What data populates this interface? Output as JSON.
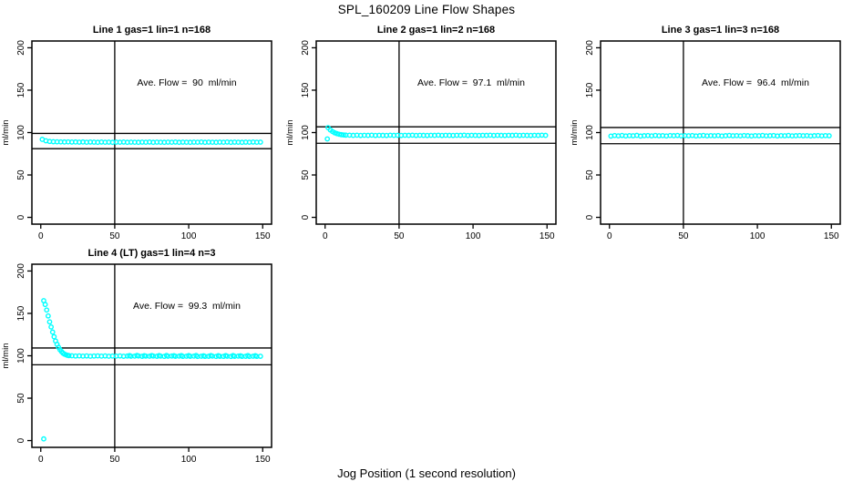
{
  "figure": {
    "title": "SPL_160209  Line Flow Shapes",
    "xlabel": "Jog Position (1 second resolution)",
    "background": "#FFFFFF",
    "series_color": "#00FFFF",
    "axis_color": "#000000"
  },
  "chart_data": [
    {
      "type": "scatter",
      "title": "Line 1 gas=1 lin=1 n=168",
      "annotation": "Ave. Flow =  90  ml/min",
      "ave_flow": 90,
      "ylabel": "ml/min",
      "xlim": [
        -6,
        156
      ],
      "ylim": [
        -8,
        208
      ],
      "xticks": [
        0,
        50,
        100,
        150
      ],
      "yticks": [
        0,
        50,
        100,
        150,
        200
      ],
      "vline": 50,
      "hlines": [
        99,
        81
      ],
      "points": [
        [
          1,
          92.0
        ],
        [
          3.5,
          90.3
        ],
        [
          6,
          89.5
        ],
        [
          8.5,
          89.2
        ],
        [
          11,
          89.1
        ],
        [
          13.5,
          89.0
        ],
        [
          16,
          88.9
        ],
        [
          18.5,
          89.0
        ],
        [
          21,
          88.8
        ],
        [
          23.5,
          88.9
        ],
        [
          26,
          88.7
        ],
        [
          28.5,
          88.9
        ],
        [
          31,
          88.6
        ],
        [
          33.5,
          88.8
        ],
        [
          36,
          88.7
        ],
        [
          38.5,
          88.5
        ],
        [
          41,
          88.8
        ],
        [
          43.5,
          88.6
        ],
        [
          46,
          88.7
        ],
        [
          48.5,
          88.5
        ],
        [
          51,
          88.7
        ],
        [
          53.5,
          88.6
        ],
        [
          56,
          88.8
        ],
        [
          58.5,
          88.5
        ],
        [
          61,
          88.7
        ],
        [
          63.5,
          88.6
        ],
        [
          66,
          88.5
        ],
        [
          68.5,
          88.7
        ],
        [
          71,
          88.6
        ],
        [
          73.5,
          88.8
        ],
        [
          76,
          88.5
        ],
        [
          78.5,
          88.7
        ],
        [
          81,
          88.6
        ],
        [
          83.5,
          88.5
        ],
        [
          86,
          88.7
        ],
        [
          88.5,
          88.6
        ],
        [
          91,
          88.8
        ],
        [
          93.5,
          88.5
        ],
        [
          96,
          88.7
        ],
        [
          98.5,
          88.6
        ],
        [
          101,
          88.5
        ],
        [
          103.5,
          88.7
        ],
        [
          106,
          88.6
        ],
        [
          108.5,
          88.8
        ],
        [
          111,
          88.5
        ],
        [
          113.5,
          88.7
        ],
        [
          116,
          88.6
        ],
        [
          118.5,
          88.5
        ],
        [
          121,
          88.7
        ],
        [
          123.5,
          88.6
        ],
        [
          126,
          88.8
        ],
        [
          128.5,
          88.5
        ],
        [
          131,
          88.7
        ],
        [
          133.5,
          88.6
        ],
        [
          136,
          88.5
        ],
        [
          138.5,
          88.7
        ],
        [
          141,
          88.6
        ],
        [
          143.5,
          88.8
        ],
        [
          146,
          88.6
        ],
        [
          148.5,
          88.7
        ]
      ]
    },
    {
      "type": "scatter",
      "title": "Line 2 gas=1 lin=2 n=168",
      "annotation": "Ave. Flow =  97.1  ml/min",
      "ave_flow": 97.1,
      "ylabel": "ml/min",
      "xlim": [
        -6,
        156
      ],
      "ylim": [
        -8,
        208
      ],
      "xticks": [
        0,
        50,
        100,
        150
      ],
      "yticks": [
        0,
        50,
        100,
        150,
        200
      ],
      "vline": 50,
      "hlines": [
        106.8,
        87.4
      ],
      "points": [
        [
          1.5,
          92.5
        ],
        [
          2,
          105.8
        ],
        [
          3.5,
          103.2
        ],
        [
          5,
          101.2
        ],
        [
          6.5,
          99.7
        ],
        [
          8,
          98.7
        ],
        [
          9.5,
          98.0
        ],
        [
          11,
          97.5
        ],
        [
          12.5,
          97.2
        ],
        [
          14,
          97.0
        ],
        [
          16.5,
          96.9
        ],
        [
          19,
          96.7
        ],
        [
          21.5,
          96.9
        ],
        [
          24,
          96.6
        ],
        [
          26.5,
          96.8
        ],
        [
          29,
          96.7
        ],
        [
          31.5,
          96.9
        ],
        [
          34,
          96.6
        ],
        [
          36.5,
          96.8
        ],
        [
          39,
          96.7
        ],
        [
          41.5,
          96.6
        ],
        [
          44,
          96.9
        ],
        [
          46.5,
          96.7
        ],
        [
          49,
          96.8
        ],
        [
          51.5,
          96.6
        ],
        [
          54,
          96.8
        ],
        [
          56.5,
          96.7
        ],
        [
          59,
          96.9
        ],
        [
          61.5,
          96.6
        ],
        [
          64,
          96.8
        ],
        [
          66.5,
          96.7
        ],
        [
          69,
          96.6
        ],
        [
          71.5,
          96.8
        ],
        [
          74,
          96.7
        ],
        [
          76.5,
          96.9
        ],
        [
          79,
          96.6
        ],
        [
          81.5,
          96.8
        ],
        [
          84,
          96.7
        ],
        [
          86.5,
          96.6
        ],
        [
          89,
          96.8
        ],
        [
          91.5,
          96.7
        ],
        [
          94,
          96.9
        ],
        [
          96.5,
          96.6
        ],
        [
          99,
          96.8
        ],
        [
          101.5,
          96.7
        ],
        [
          104,
          96.6
        ],
        [
          106.5,
          96.8
        ],
        [
          109,
          96.7
        ],
        [
          111.5,
          96.9
        ],
        [
          114,
          96.6
        ],
        [
          116.5,
          96.8
        ],
        [
          119,
          96.7
        ],
        [
          121.5,
          96.6
        ],
        [
          124,
          96.8
        ],
        [
          126.5,
          96.7
        ],
        [
          129,
          96.9
        ],
        [
          131.5,
          96.6
        ],
        [
          134,
          96.8
        ],
        [
          136.5,
          96.7
        ],
        [
          139,
          96.6
        ],
        [
          141.5,
          96.8
        ],
        [
          144,
          96.7
        ],
        [
          146.5,
          96.9
        ],
        [
          149,
          96.7
        ]
      ]
    },
    {
      "type": "scatter",
      "title": "Line 3 gas=1 lin=3 n=168",
      "annotation": "Ave. Flow =  96.4  ml/min",
      "ave_flow": 96.4,
      "ylabel": "ml/min",
      "xlim": [
        -6,
        156
      ],
      "ylim": [
        -8,
        208
      ],
      "xticks": [
        0,
        50,
        100,
        150
      ],
      "yticks": [
        0,
        50,
        100,
        150,
        200
      ],
      "vline": 50,
      "hlines": [
        106.0,
        86.8
      ],
      "points": [
        [
          1,
          95.8
        ],
        [
          3.5,
          96.5
        ],
        [
          6,
          96.1
        ],
        [
          8.5,
          96.6
        ],
        [
          11,
          96.0
        ],
        [
          13.5,
          96.4
        ],
        [
          16,
          96.2
        ],
        [
          18.5,
          96.7
        ],
        [
          21,
          95.9
        ],
        [
          23.5,
          96.3
        ],
        [
          26,
          96.5
        ],
        [
          28.5,
          96.1
        ],
        [
          31,
          96.6
        ],
        [
          33.5,
          96.2
        ],
        [
          36,
          96.4
        ],
        [
          38.5,
          96.0
        ],
        [
          41,
          96.5
        ],
        [
          43.5,
          96.3
        ],
        [
          46,
          96.6
        ],
        [
          48.5,
          96.1
        ],
        [
          51,
          96.4
        ],
        [
          53.5,
          96.2
        ],
        [
          56,
          96.5
        ],
        [
          58.5,
          96.0
        ],
        [
          61,
          96.3
        ],
        [
          63.5,
          96.6
        ],
        [
          66,
          96.1
        ],
        [
          68.5,
          96.4
        ],
        [
          71,
          96.2
        ],
        [
          73.5,
          96.5
        ],
        [
          76,
          96.0
        ],
        [
          78.5,
          96.3
        ],
        [
          81,
          96.6
        ],
        [
          83.5,
          96.2
        ],
        [
          86,
          96.4
        ],
        [
          88.5,
          96.1
        ],
        [
          91,
          96.5
        ],
        [
          93.5,
          96.3
        ],
        [
          96,
          96.0
        ],
        [
          98.5,
          96.4
        ],
        [
          101,
          96.2
        ],
        [
          103.5,
          96.6
        ],
        [
          106,
          96.1
        ],
        [
          108.5,
          96.3
        ],
        [
          111,
          96.5
        ],
        [
          113.5,
          96.0
        ],
        [
          116,
          96.4
        ],
        [
          118.5,
          96.2
        ],
        [
          121,
          96.6
        ],
        [
          123.5,
          96.1
        ],
        [
          126,
          96.3
        ],
        [
          128.5,
          96.5
        ],
        [
          131,
          96.2
        ],
        [
          133.5,
          96.4
        ],
        [
          136,
          96.0
        ],
        [
          138.5,
          96.3
        ],
        [
          141,
          96.5
        ],
        [
          143.5,
          96.1
        ],
        [
          146,
          96.4
        ],
        [
          148.5,
          96.2
        ]
      ]
    },
    {
      "type": "scatter",
      "title": "Line 4 (LT) gas=1 lin=4 n=3",
      "annotation": "Ave. Flow =  99.3  ml/min",
      "ave_flow": 99.3,
      "ylabel": "ml/min",
      "xlim": [
        -6,
        156
      ],
      "ylim": [
        -8,
        208
      ],
      "xticks": [
        0,
        50,
        100,
        150
      ],
      "yticks": [
        0,
        50,
        100,
        150,
        200
      ],
      "vline": 50,
      "hlines": [
        109.2,
        89.4
      ],
      "points": [
        [
          2,
          2
        ],
        [
          2,
          165
        ],
        [
          3,
          160.5
        ],
        [
          4,
          154
        ],
        [
          5,
          147
        ],
        [
          6,
          140
        ],
        [
          7,
          134
        ],
        [
          8,
          128
        ],
        [
          9,
          122.5
        ],
        [
          10,
          117.5
        ],
        [
          11,
          113.5
        ],
        [
          12,
          110
        ],
        [
          13,
          107.2
        ],
        [
          14,
          105
        ],
        [
          15,
          103.2
        ],
        [
          16,
          102
        ],
        [
          17,
          101.2
        ],
        [
          18,
          100.6
        ],
        [
          19,
          100.2
        ],
        [
          21,
          100.0
        ],
        [
          23.5,
          99.7
        ],
        [
          26,
          99.9
        ],
        [
          28.5,
          99.6
        ],
        [
          31,
          99.8
        ],
        [
          33.5,
          99.5
        ],
        [
          36,
          99.7
        ],
        [
          38.5,
          99.9
        ],
        [
          41,
          99.6
        ],
        [
          43.5,
          99.8
        ],
        [
          46,
          99.5
        ],
        [
          48.5,
          99.7
        ],
        [
          51,
          99.6
        ],
        [
          53.5,
          99.8
        ],
        [
          56,
          99.4
        ],
        [
          58.5,
          99.7
        ],
        [
          61,
          99.5
        ],
        [
          63.5,
          99.6
        ],
        [
          66,
          99.8
        ],
        [
          68.5,
          99.4
        ],
        [
          71,
          99.6
        ],
        [
          73.5,
          99.5
        ],
        [
          76,
          99.7
        ],
        [
          78.5,
          99.4
        ],
        [
          81,
          99.6
        ],
        [
          83.5,
          99.3
        ],
        [
          86,
          99.5
        ],
        [
          88.5,
          99.7
        ],
        [
          91,
          99.4
        ],
        [
          93.5,
          99.6
        ],
        [
          96,
          99.3
        ],
        [
          98.5,
          99.5
        ],
        [
          101,
          99.4
        ],
        [
          103.5,
          99.6
        ],
        [
          106,
          99.2
        ],
        [
          108.5,
          99.5
        ],
        [
          111,
          99.3
        ],
        [
          113.5,
          99.4
        ],
        [
          116,
          99.6
        ],
        [
          118.5,
          99.2
        ],
        [
          121,
          99.4
        ],
        [
          123.5,
          99.3
        ],
        [
          126,
          99.5
        ],
        [
          128.5,
          99.2
        ],
        [
          131,
          99.4
        ],
        [
          133.5,
          99.6
        ],
        [
          136,
          99.3
        ],
        [
          138.5,
          99.4
        ],
        [
          141,
          99.2
        ],
        [
          143.5,
          99.5
        ],
        [
          146,
          99.3
        ],
        [
          148.5,
          99.4
        ],
        [
          60,
          100.2
        ],
        [
          65,
          100.4
        ],
        [
          70,
          100.1
        ],
        [
          75,
          100.3
        ],
        [
          80,
          100.2
        ],
        [
          85,
          100.4
        ],
        [
          90,
          100.1
        ],
        [
          95,
          100.3
        ],
        [
          100,
          100.2
        ],
        [
          105,
          100.4
        ],
        [
          110,
          100.0
        ],
        [
          115,
          100.3
        ],
        [
          120,
          100.1
        ],
        [
          125,
          100.3
        ],
        [
          130,
          100.2
        ],
        [
          135,
          100.0
        ],
        [
          140,
          100.3
        ],
        [
          145,
          100.1
        ]
      ]
    }
  ]
}
